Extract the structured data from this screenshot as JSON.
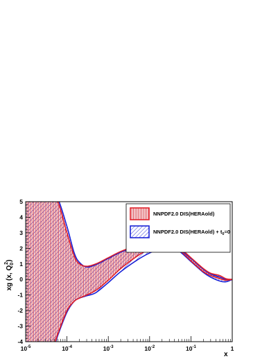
{
  "chart_data": {
    "type": "area",
    "title": "",
    "xlabel": "x",
    "ylabel": "xg (x, Q",
    "ylabel_sub": "0",
    "ylabel_sup": "2",
    "ylabel_close": ")",
    "x_scale": "log",
    "xlim": [
      1e-05,
      1
    ],
    "ylim": [
      -4,
      5
    ],
    "x_ticks": [
      {
        "base": "10",
        "exp": "-5",
        "value": 1e-05
      },
      {
        "base": "10",
        "exp": "-4",
        "value": 0.0001
      },
      {
        "base": "10",
        "exp": "-3",
        "value": 0.001
      },
      {
        "base": "10",
        "exp": "-2",
        "value": 0.01
      },
      {
        "base": "10",
        "exp": "-1",
        "value": 0.1
      },
      {
        "base": "1",
        "exp": "",
        "value": 1
      }
    ],
    "y_ticks": [
      "-4",
      "-3",
      "-2",
      "-1",
      "0",
      "1",
      "2",
      "3",
      "4",
      "5"
    ],
    "legend_placement": "top-right",
    "grid": false,
    "series": [
      {
        "name": "NNPDF2.0 DIS(HERAold)",
        "color": "#e0202a",
        "hatch": "vertical",
        "x": [
          1e-05,
          2e-05,
          4e-05,
          6e-05,
          0.0001,
          0.00015,
          0.0002,
          0.0003,
          0.0005,
          0.001,
          0.002,
          0.005,
          0.01,
          0.02,
          0.03,
          0.05,
          0.1,
          0.2,
          0.3,
          0.5,
          0.7,
          1
        ],
        "upper": [
          5.5,
          5.4,
          5.2,
          5.0,
          3.0,
          1.5,
          1.0,
          0.85,
          1.0,
          1.4,
          1.8,
          2.2,
          2.45,
          2.5,
          2.4,
          2.1,
          1.4,
          0.7,
          0.4,
          0.25,
          0.05,
          0.0
        ],
        "lower": [
          -5.5,
          -5.4,
          -4.8,
          -3.5,
          -2.0,
          -1.4,
          -1.2,
          -1.0,
          -0.7,
          -0.05,
          0.7,
          1.5,
          1.95,
          2.25,
          2.2,
          1.95,
          1.2,
          0.5,
          0.25,
          0.05,
          -0.05,
          0.0
        ]
      },
      {
        "name": "NNPDF2.0 DIS(HERAold) + t",
        "name_sub": "0",
        "name_tail": "=0",
        "color": "#1a22d6",
        "hatch": "diagonal",
        "x": [
          1e-05,
          2e-05,
          4e-05,
          6e-05,
          0.0001,
          0.00015,
          0.0002,
          0.0003,
          0.0005,
          0.001,
          0.002,
          0.005,
          0.01,
          0.02,
          0.03,
          0.05,
          0.1,
          0.2,
          0.3,
          0.5,
          0.7,
          1
        ],
        "upper": [
          5.5,
          5.5,
          5.5,
          5.2,
          3.4,
          1.7,
          1.1,
          0.8,
          0.95,
          1.35,
          1.75,
          2.15,
          2.35,
          2.35,
          2.25,
          2.0,
          1.35,
          0.65,
          0.35,
          0.15,
          0.0,
          0.0
        ],
        "lower": [
          -5.5,
          -5.5,
          -5.0,
          -3.6,
          -2.1,
          -1.4,
          -1.2,
          -1.05,
          -0.85,
          -0.2,
          0.5,
          1.25,
          1.7,
          2.0,
          2.0,
          1.85,
          1.15,
          0.45,
          0.15,
          -0.1,
          -0.15,
          0.0
        ]
      }
    ]
  }
}
